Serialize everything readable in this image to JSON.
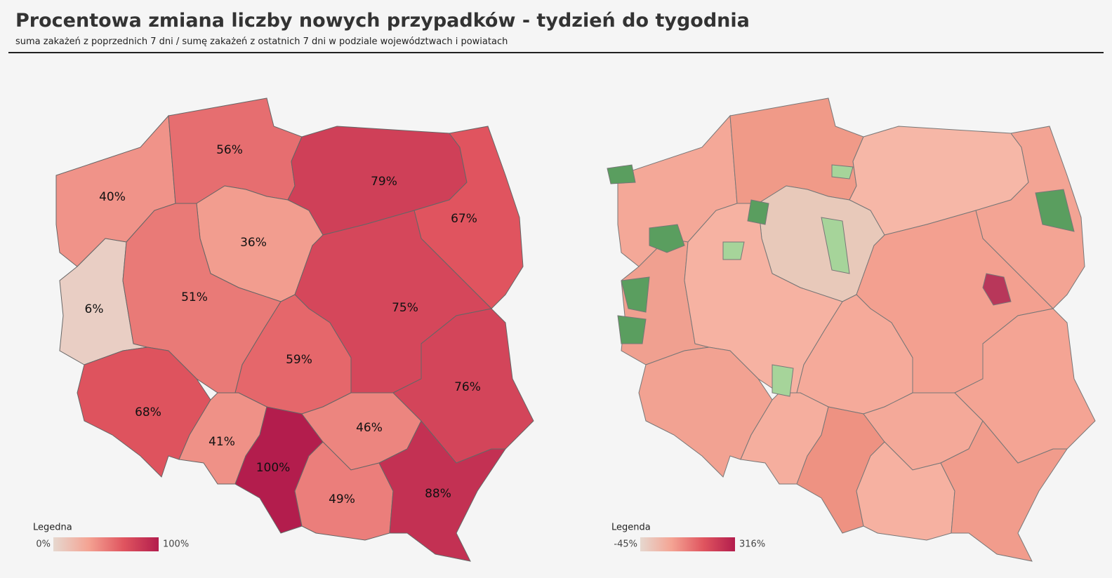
{
  "header": {
    "title": "Procentowa zmiana liczby nowych przypadków - tydzień do tygodnia",
    "subtitle": "suma zakażeń z poprzednich  7 dni / sumę zakażeń z ostatnich 7 dni w podziale województwach i powiatach"
  },
  "maps": [
    {
      "type": "choropleth",
      "values": [
        40,
        56,
        79,
        67,
        36,
        6,
        51,
        75,
        59,
        68,
        41,
        100,
        46,
        49,
        88,
        76
      ],
      "value_labels": [
        "40%",
        "56%",
        "79%",
        "67%",
        "36%",
        "6%",
        "51%",
        "75%",
        "59%",
        "68%",
        "41%",
        "100%",
        "46%",
        "49%",
        "88%",
        "76%"
      ],
      "legend": {
        "title": "Legedna",
        "min": {
          "value": 0,
          "label": "0%"
        },
        "max": {
          "value": 100,
          "label": "100%"
        },
        "colors": [
          "#e6d8cf",
          "#f4a393",
          "#e0555f",
          "#b31d4d"
        ]
      }
    },
    {
      "type": "choropleth",
      "legend": {
        "title": "Legenda",
        "min": {
          "value": -45,
          "label": "-45%"
        },
        "max": {
          "value": 316,
          "label": "316%"
        },
        "colors": [
          "#2e7d3e",
          "#d6e8cf",
          "#f6b4a3",
          "#e25a5e",
          "#b31d4d"
        ]
      }
    }
  ]
}
